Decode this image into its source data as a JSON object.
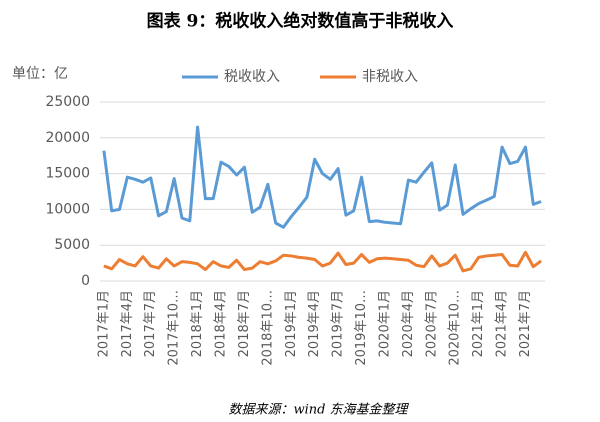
{
  "chart_data": {
    "type": "line",
    "title": "图表 9：税收收入绝对数值高于非税收入",
    "y_label": "单位：亿",
    "source": "数据来源：wind  东海基金整理",
    "categories": [
      "2017年1月",
      null,
      null,
      "2017年4月",
      null,
      null,
      "2017年7月",
      null,
      null,
      "2017年10…",
      null,
      null,
      "2018年1月",
      null,
      null,
      "2018年4月",
      null,
      null,
      "2018年7月",
      null,
      null,
      "2018年10…",
      null,
      null,
      "2019年1月",
      null,
      null,
      "2019年4月",
      null,
      null,
      "2019年7月",
      null,
      null,
      "2019年10…",
      null,
      null,
      "2020年1月",
      null,
      null,
      "2020年4月",
      null,
      null,
      "2020年7月",
      null,
      null,
      "2020年10…",
      null,
      null,
      "2021年1月",
      null,
      null,
      "2021年4月",
      null,
      null,
      "2021年7月",
      null,
      null
    ],
    "series": [
      {
        "name": "税收收入",
        "color": "#5b9bd5",
        "values": [
          18200,
          9800,
          10000,
          14500,
          14200,
          13800,
          14400,
          9100,
          9700,
          14300,
          8800,
          8400,
          21500,
          11500,
          11500,
          16600,
          16000,
          14800,
          15900,
          9600,
          10300,
          13500,
          8100,
          7500,
          9000,
          10300,
          11700,
          17000,
          15000,
          14200,
          15700,
          9200,
          9800,
          14500,
          8300,
          8400,
          8200,
          8100,
          8000,
          14100,
          13800,
          15200,
          16500,
          9900,
          10600,
          16200,
          9300,
          10100,
          10800,
          11300,
          11800,
          18700,
          16400,
          16700,
          18700,
          10700,
          11100
        ]
      },
      {
        "name": "非税收入",
        "color": "#ed7d31",
        "values": [
          2100,
          1700,
          3000,
          2400,
          2100,
          3400,
          2100,
          1800,
          3100,
          2100,
          2700,
          2600,
          2400,
          1600,
          2700,
          2100,
          1900,
          2900,
          1600,
          1800,
          2700,
          2400,
          2800,
          3600,
          3500,
          3300,
          3200,
          3000,
          2100,
          2500,
          3900,
          2300,
          2500,
          3700,
          2600,
          3100,
          3200,
          3100,
          3000,
          2900,
          2200,
          2000,
          3500,
          2100,
          2500,
          3600,
          1400,
          1700,
          3300,
          3500,
          3600,
          3700,
          2200,
          2100,
          4000,
          2000,
          2800
        ]
      }
    ],
    "ylim": [
      0,
      25000
    ],
    "yticks": [
      0,
      5000,
      10000,
      15000,
      20000,
      25000
    ],
    "grid": true,
    "legend": "top"
  }
}
